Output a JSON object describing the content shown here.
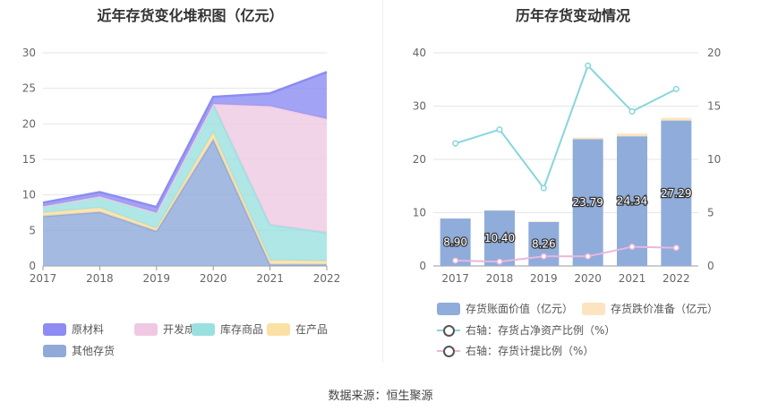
{
  "source_text": "数据来源：恒生聚源",
  "chart_data": [
    {
      "type": "area",
      "stacked": true,
      "title": "近年存货变化堆积图（亿元）",
      "categories": [
        "2017",
        "2018",
        "2019",
        "2020",
        "2021",
        "2022"
      ],
      "ylim": [
        0,
        30
      ],
      "yticks": [
        0,
        5,
        10,
        15,
        20,
        25,
        30
      ],
      "grid": true,
      "legend_position": "bottom-left",
      "series": [
        {
          "name": "其他存货",
          "color": "#8fa9d9",
          "values": [
            7.0,
            7.6,
            4.9,
            17.8,
            0.2,
            0.2
          ]
        },
        {
          "name": "在产品",
          "color": "#fbe0a6",
          "values": [
            0.5,
            0.6,
            0.4,
            1.0,
            0.6,
            0.5
          ]
        },
        {
          "name": "库存商品",
          "color": "#9be0e0",
          "values": [
            0.9,
            1.6,
            2.2,
            4.0,
            5.0,
            4.0
          ]
        },
        {
          "name": "开发成本",
          "color": "#efc9e3",
          "values": [
            0.0,
            0.0,
            0.0,
            0.0,
            16.7,
            16.0
          ]
        },
        {
          "name": "原材料",
          "color": "#8c8cf2",
          "values": [
            0.5,
            0.6,
            0.8,
            1.0,
            1.8,
            6.6
          ]
        }
      ],
      "legend_order": [
        "原材料",
        "开发成本",
        "库存商品",
        "在产品",
        "其他存货"
      ]
    },
    {
      "type": "bar",
      "title": "历年存货变动情况",
      "categories": [
        "2017",
        "2018",
        "2019",
        "2020",
        "2021",
        "2022"
      ],
      "ylim": [
        0,
        40
      ],
      "yticks": [
        0,
        10,
        20,
        30,
        40
      ],
      "y2lim": [
        0,
        20
      ],
      "y2ticks": [
        0,
        5,
        10,
        15,
        20
      ],
      "grid": true,
      "legend_position": "bottom",
      "series": [
        {
          "name": "存货账面价值（亿元）",
          "type": "bar",
          "axis": "left",
          "color": "#8facdb",
          "values": [
            8.9,
            10.4,
            8.26,
            23.79,
            24.34,
            27.29
          ],
          "labels": [
            "8.90",
            "10.40",
            "8.26",
            "23.79",
            "24.34",
            "27.29"
          ]
        },
        {
          "name": "存货跌价准备（亿元）",
          "type": "bar",
          "axis": "left",
          "color": "#fbe4bf",
          "values": [
            0.05,
            0.05,
            0.1,
            0.3,
            0.5,
            0.5
          ]
        },
        {
          "name": "右轴：存货占净资产比例（%）",
          "type": "line",
          "axis": "right",
          "color": "#87d6dd",
          "values": [
            11.5,
            12.8,
            7.3,
            18.8,
            14.5,
            16.6
          ]
        },
        {
          "name": "右轴：存货计提比例（%）",
          "type": "line",
          "axis": "right",
          "color": "#e9b7db",
          "values": [
            0.5,
            0.4,
            0.9,
            0.9,
            1.8,
            1.7
          ]
        }
      ]
    }
  ]
}
